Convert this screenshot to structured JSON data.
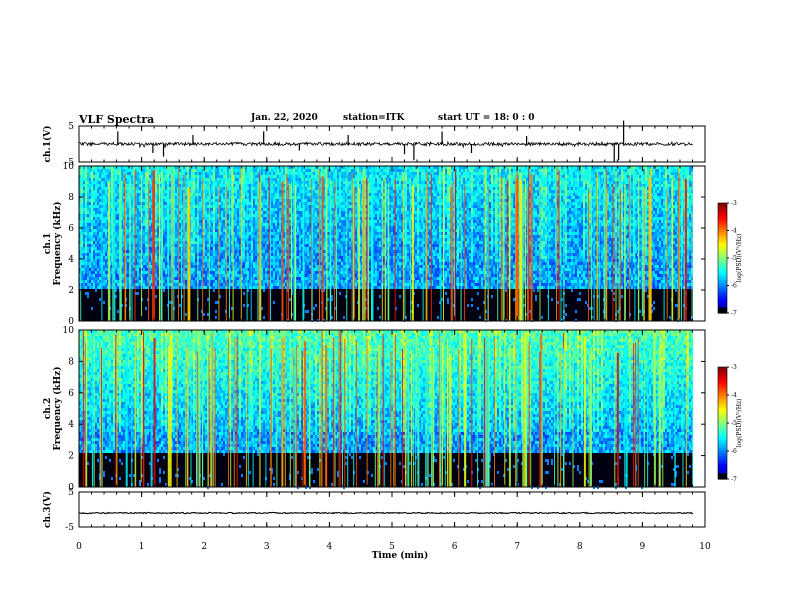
{
  "header": {
    "title": "VLF Spectra",
    "date": "Jan. 22, 2020",
    "station": "station=ITK",
    "start": "start UT = 18: 0 : 0"
  },
  "chart_data": [
    {
      "type": "line",
      "ylabel": "ch.1(V)",
      "ylim": [
        -5,
        5
      ],
      "yticks": [
        "5",
        "-5"
      ],
      "xlim": [
        0,
        10
      ],
      "baseline_v": 0,
      "spikes_min": [
        0.62,
        1.18,
        1.35,
        1.82,
        2.95,
        3.52,
        4.3,
        5.2,
        5.35,
        5.8,
        6.27,
        7.15,
        8.55,
        8.62,
        8.7
      ],
      "spike_amp_v": [
        3.5,
        -2.5,
        -3.5,
        2.5,
        3.5,
        -1.8,
        2.5,
        -2.8,
        -4.5,
        3.5,
        -2.5,
        2.2,
        -5.0,
        -4.5,
        6.5
      ]
    },
    {
      "type": "heatmap",
      "ylabel": "ch.1\nFrequency (kHz)",
      "yticks": [
        "0",
        "2",
        "4",
        "6",
        "8",
        "10"
      ],
      "ylim": [
        0,
        10
      ],
      "xlim": [
        0,
        10
      ],
      "background_band_khz": [
        2.2,
        4.0
      ],
      "colorbar": {
        "label": "log(PSD)(V²/Hz)",
        "ticks": [
          "-3",
          "-4",
          "-5",
          "-6",
          "-7"
        ],
        "range": [
          -7,
          -3
        ]
      }
    },
    {
      "type": "heatmap",
      "ylabel": "ch.2\nFrequency (kHz)",
      "yticks": [
        "0",
        "2",
        "4",
        "6",
        "8",
        "10"
      ],
      "ylim": [
        0,
        10
      ],
      "xlim": [
        0,
        10
      ],
      "background_band_khz": [
        2.2,
        3.6
      ],
      "colorbar": {
        "label": "log(PSD)(V²/Hz)",
        "ticks": [
          "-3",
          "-4",
          "-5",
          "-6",
          "-7"
        ],
        "range": [
          -7,
          -3
        ]
      }
    },
    {
      "type": "line",
      "ylabel": "ch.3(V)",
      "ylim": [
        -5,
        5
      ],
      "yticks": [
        "5",
        "-5"
      ],
      "xlim": [
        0,
        10
      ],
      "baseline_v": -1.0
    }
  ],
  "xaxis": {
    "label": "Time (min)",
    "ticks": [
      "0",
      "1",
      "2",
      "3",
      "4",
      "5",
      "6",
      "7",
      "8",
      "9",
      "10"
    ]
  }
}
